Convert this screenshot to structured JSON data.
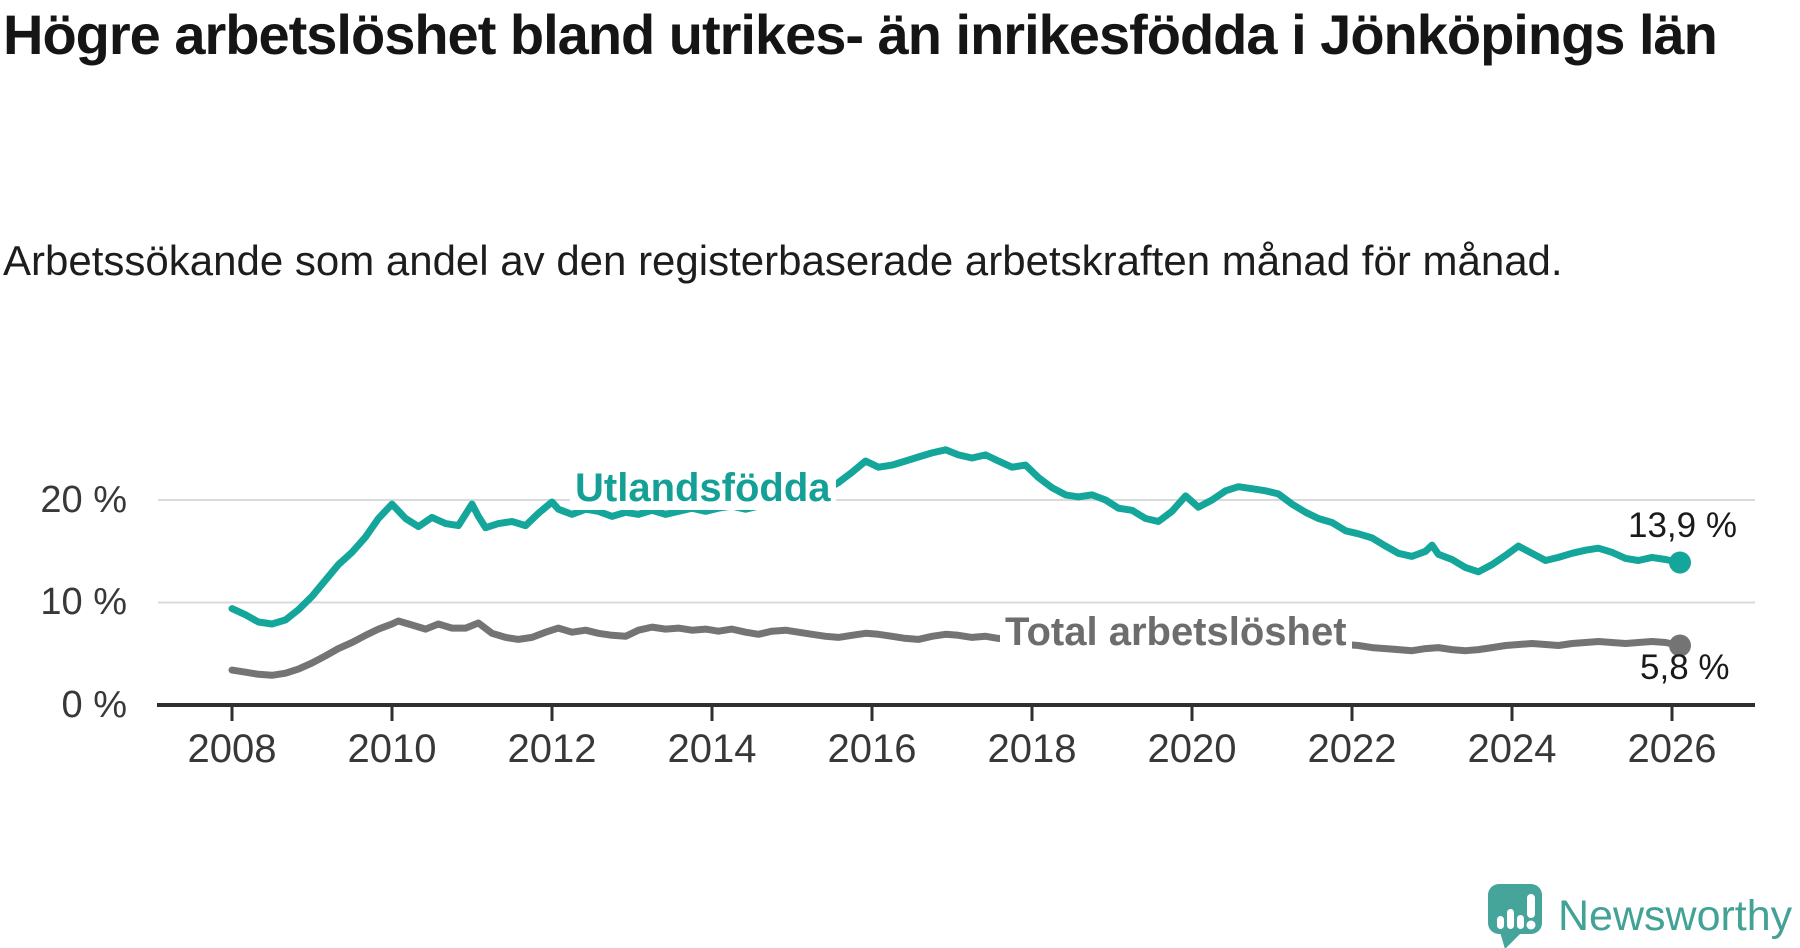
{
  "header": {
    "title": "Högre arbetslöshet bland utrikes- än inrikesfödda i Jönköpings län",
    "subtitle": "Arbetssökande som andel av den registerbaserade arbetskraften månad för månad."
  },
  "branding": {
    "name": "Newsworthy",
    "logo_icon": "speech-bubble-bar-chart-exclamation",
    "logo_color": "#45a59a"
  },
  "colors": {
    "foreign_born_line": "#14a69a",
    "total_line": "#747474",
    "gridline": "#dadada",
    "axis": "#2f2f2f",
    "text": "#1a1a1a"
  },
  "chart_data": {
    "type": "line",
    "title": "Högre arbetslöshet bland utrikes- än inrikesfödda i Jönköpings län",
    "subtitle": "Arbetssökande som andel av den registerbaserade arbetskraften månad för månad.",
    "xlabel": "",
    "ylabel": "",
    "unit": "%",
    "xlim": [
      2007.1,
      2027.0
    ],
    "ylim": [
      0,
      26
    ],
    "grid": "horizontal",
    "legend_position": "inline-labels",
    "y_ticks": [
      {
        "value": 0,
        "label": "0 %"
      },
      {
        "value": 10,
        "label": "10 %"
      },
      {
        "value": 20,
        "label": "20 %"
      }
    ],
    "x_ticks": [
      2008,
      2010,
      2012,
      2014,
      2016,
      2018,
      2020,
      2022,
      2024,
      2026
    ],
    "series": [
      {
        "name": "Utlandsfödda",
        "color": "#14a69a",
        "end_label": "13,9 %",
        "end_value": 13.9,
        "points": [
          [
            2008.0,
            9.4
          ],
          [
            2008.17,
            8.8
          ],
          [
            2008.33,
            8.1
          ],
          [
            2008.5,
            7.9
          ],
          [
            2008.67,
            8.3
          ],
          [
            2008.83,
            9.3
          ],
          [
            2009.0,
            10.6
          ],
          [
            2009.17,
            12.2
          ],
          [
            2009.33,
            13.7
          ],
          [
            2009.5,
            14.9
          ],
          [
            2009.67,
            16.4
          ],
          [
            2009.83,
            18.2
          ],
          [
            2010.0,
            19.6
          ],
          [
            2010.17,
            18.2
          ],
          [
            2010.33,
            17.4
          ],
          [
            2010.5,
            18.3
          ],
          [
            2010.67,
            17.7
          ],
          [
            2010.83,
            17.5
          ],
          [
            2011.0,
            19.6
          ],
          [
            2011.08,
            18.4
          ],
          [
            2011.17,
            17.3
          ],
          [
            2011.33,
            17.7
          ],
          [
            2011.5,
            17.9
          ],
          [
            2011.67,
            17.5
          ],
          [
            2011.83,
            18.7
          ],
          [
            2012.0,
            19.8
          ],
          [
            2012.08,
            19.1
          ],
          [
            2012.25,
            18.6
          ],
          [
            2012.42,
            19.1
          ],
          [
            2012.58,
            18.9
          ],
          [
            2012.75,
            18.4
          ],
          [
            2012.92,
            18.8
          ],
          [
            2013.08,
            18.6
          ],
          [
            2013.25,
            19.0
          ],
          [
            2013.42,
            18.6
          ],
          [
            2013.58,
            18.9
          ],
          [
            2013.75,
            19.2
          ],
          [
            2013.92,
            18.9
          ],
          [
            2014.08,
            19.2
          ],
          [
            2014.25,
            19.4
          ],
          [
            2014.42,
            19.1
          ],
          [
            2014.58,
            19.4
          ],
          [
            2014.75,
            19.7
          ],
          [
            2014.92,
            19.9
          ],
          [
            2015.08,
            20.1
          ],
          [
            2015.25,
            20.5
          ],
          [
            2015.42,
            21.0
          ],
          [
            2015.58,
            21.7
          ],
          [
            2015.75,
            22.7
          ],
          [
            2015.92,
            23.8
          ],
          [
            2016.08,
            23.2
          ],
          [
            2016.25,
            23.4
          ],
          [
            2016.42,
            23.8
          ],
          [
            2016.58,
            24.2
          ],
          [
            2016.75,
            24.6
          ],
          [
            2016.92,
            24.9
          ],
          [
            2017.08,
            24.4
          ],
          [
            2017.25,
            24.1
          ],
          [
            2017.42,
            24.4
          ],
          [
            2017.58,
            23.8
          ],
          [
            2017.75,
            23.2
          ],
          [
            2017.92,
            23.4
          ],
          [
            2018.08,
            22.2
          ],
          [
            2018.25,
            21.2
          ],
          [
            2018.42,
            20.5
          ],
          [
            2018.58,
            20.3
          ],
          [
            2018.75,
            20.5
          ],
          [
            2018.92,
            20.0
          ],
          [
            2019.08,
            19.2
          ],
          [
            2019.25,
            19.0
          ],
          [
            2019.42,
            18.2
          ],
          [
            2019.58,
            17.9
          ],
          [
            2019.75,
            18.9
          ],
          [
            2019.92,
            20.4
          ],
          [
            2020.08,
            19.3
          ],
          [
            2020.25,
            20.0
          ],
          [
            2020.42,
            20.9
          ],
          [
            2020.58,
            21.3
          ],
          [
            2020.75,
            21.1
          ],
          [
            2020.92,
            20.9
          ],
          [
            2021.08,
            20.6
          ],
          [
            2021.25,
            19.6
          ],
          [
            2021.42,
            18.8
          ],
          [
            2021.58,
            18.2
          ],
          [
            2021.75,
            17.8
          ],
          [
            2021.92,
            17.0
          ],
          [
            2022.08,
            16.7
          ],
          [
            2022.25,
            16.3
          ],
          [
            2022.42,
            15.5
          ],
          [
            2022.58,
            14.8
          ],
          [
            2022.75,
            14.5
          ],
          [
            2022.92,
            15.0
          ],
          [
            2023.0,
            15.6
          ],
          [
            2023.08,
            14.7
          ],
          [
            2023.25,
            14.2
          ],
          [
            2023.42,
            13.4
          ],
          [
            2023.58,
            13.0
          ],
          [
            2023.75,
            13.7
          ],
          [
            2023.92,
            14.6
          ],
          [
            2024.08,
            15.5
          ],
          [
            2024.25,
            14.8
          ],
          [
            2024.42,
            14.1
          ],
          [
            2024.58,
            14.4
          ],
          [
            2024.75,
            14.8
          ],
          [
            2024.92,
            15.1
          ],
          [
            2025.08,
            15.3
          ],
          [
            2025.25,
            14.9
          ],
          [
            2025.42,
            14.3
          ],
          [
            2025.58,
            14.1
          ],
          [
            2025.75,
            14.4
          ],
          [
            2025.92,
            14.2
          ],
          [
            2026.1,
            13.9
          ]
        ]
      },
      {
        "name": "Total arbetslöshet",
        "color": "#747474",
        "end_label": "5,8 %",
        "end_value": 5.8,
        "points": [
          [
            2008.0,
            3.4
          ],
          [
            2008.17,
            3.2
          ],
          [
            2008.33,
            3.0
          ],
          [
            2008.5,
            2.9
          ],
          [
            2008.67,
            3.1
          ],
          [
            2008.83,
            3.5
          ],
          [
            2009.0,
            4.1
          ],
          [
            2009.17,
            4.8
          ],
          [
            2009.33,
            5.5
          ],
          [
            2009.5,
            6.1
          ],
          [
            2009.67,
            6.8
          ],
          [
            2009.83,
            7.4
          ],
          [
            2010.0,
            7.9
          ],
          [
            2010.08,
            8.2
          ],
          [
            2010.25,
            7.8
          ],
          [
            2010.42,
            7.4
          ],
          [
            2010.58,
            7.9
          ],
          [
            2010.75,
            7.5
          ],
          [
            2010.92,
            7.5
          ],
          [
            2011.08,
            8.0
          ],
          [
            2011.25,
            7.0
          ],
          [
            2011.42,
            6.6
          ],
          [
            2011.58,
            6.4
          ],
          [
            2011.75,
            6.6
          ],
          [
            2011.92,
            7.1
          ],
          [
            2012.08,
            7.5
          ],
          [
            2012.25,
            7.1
          ],
          [
            2012.42,
            7.3
          ],
          [
            2012.58,
            7.0
          ],
          [
            2012.75,
            6.8
          ],
          [
            2012.92,
            6.7
          ],
          [
            2013.08,
            7.3
          ],
          [
            2013.25,
            7.6
          ],
          [
            2013.42,
            7.4
          ],
          [
            2013.58,
            7.5
          ],
          [
            2013.75,
            7.3
          ],
          [
            2013.92,
            7.4
          ],
          [
            2014.08,
            7.2
          ],
          [
            2014.25,
            7.4
          ],
          [
            2014.42,
            7.1
          ],
          [
            2014.58,
            6.9
          ],
          [
            2014.75,
            7.2
          ],
          [
            2014.92,
            7.3
          ],
          [
            2015.08,
            7.1
          ],
          [
            2015.25,
            6.9
          ],
          [
            2015.42,
            6.7
          ],
          [
            2015.58,
            6.6
          ],
          [
            2015.75,
            6.8
          ],
          [
            2015.92,
            7.0
          ],
          [
            2016.08,
            6.9
          ],
          [
            2016.25,
            6.7
          ],
          [
            2016.42,
            6.5
          ],
          [
            2016.58,
            6.4
          ],
          [
            2016.75,
            6.7
          ],
          [
            2016.92,
            6.9
          ],
          [
            2017.08,
            6.8
          ],
          [
            2017.25,
            6.6
          ],
          [
            2017.42,
            6.7
          ],
          [
            2017.58,
            6.5
          ],
          [
            2017.75,
            6.4
          ],
          [
            2017.92,
            6.6
          ],
          [
            2018.08,
            6.5
          ],
          [
            2018.25,
            6.3
          ],
          [
            2018.42,
            6.2
          ],
          [
            2018.58,
            6.1
          ],
          [
            2018.75,
            6.3
          ],
          [
            2018.92,
            6.4
          ],
          [
            2019.08,
            6.2
          ],
          [
            2019.25,
            6.1
          ],
          [
            2019.42,
            6.0
          ],
          [
            2019.58,
            5.9
          ],
          [
            2019.75,
            6.1
          ],
          [
            2019.92,
            6.4
          ],
          [
            2020.08,
            6.4
          ],
          [
            2020.25,
            6.7
          ],
          [
            2020.42,
            7.2
          ],
          [
            2020.58,
            7.4
          ],
          [
            2020.75,
            7.3
          ],
          [
            2020.92,
            7.2
          ],
          [
            2021.08,
            7.0
          ],
          [
            2021.25,
            6.7
          ],
          [
            2021.42,
            6.4
          ],
          [
            2021.58,
            6.2
          ],
          [
            2021.75,
            6.0
          ],
          [
            2021.92,
            5.9
          ],
          [
            2022.08,
            5.8
          ],
          [
            2022.25,
            5.6
          ],
          [
            2022.42,
            5.5
          ],
          [
            2022.58,
            5.4
          ],
          [
            2022.75,
            5.3
          ],
          [
            2022.92,
            5.5
          ],
          [
            2023.08,
            5.6
          ],
          [
            2023.25,
            5.4
          ],
          [
            2023.42,
            5.3
          ],
          [
            2023.58,
            5.4
          ],
          [
            2023.75,
            5.6
          ],
          [
            2023.92,
            5.8
          ],
          [
            2024.08,
            5.9
          ],
          [
            2024.25,
            6.0
          ],
          [
            2024.42,
            5.9
          ],
          [
            2024.58,
            5.8
          ],
          [
            2024.75,
            6.0
          ],
          [
            2024.92,
            6.1
          ],
          [
            2025.08,
            6.2
          ],
          [
            2025.25,
            6.1
          ],
          [
            2025.42,
            6.0
          ],
          [
            2025.58,
            6.1
          ],
          [
            2025.75,
            6.2
          ],
          [
            2025.92,
            6.1
          ],
          [
            2026.1,
            5.8
          ]
        ]
      }
    ]
  }
}
